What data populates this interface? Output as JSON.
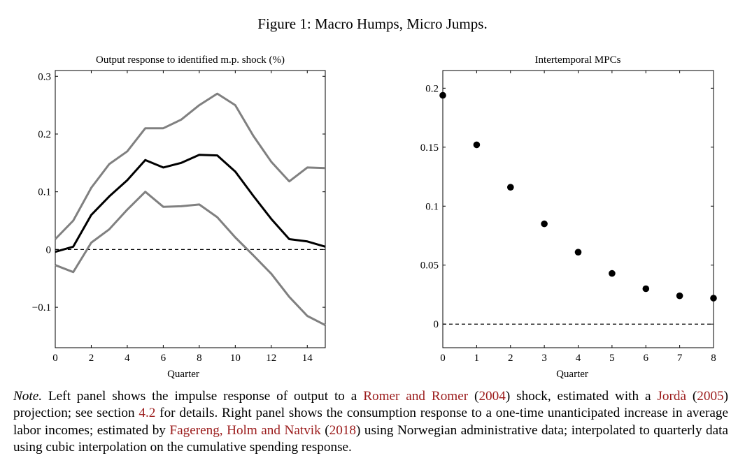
{
  "figure_title": "Figure 1: Macro Humps, Micro Jumps.",
  "chart_data": [
    {
      "type": "line",
      "title": "Output response to identified m.p. shock (%)",
      "xlabel": "Quarter",
      "ylabel": "",
      "xlim": [
        0,
        15
      ],
      "ylim": [
        -0.17,
        0.31
      ],
      "xticks": [
        0,
        2,
        4,
        6,
        8,
        10,
        12,
        14
      ],
      "yticks": [
        {
          "value": -0.1,
          "label": "−0.1"
        },
        {
          "value": 0,
          "label": "0"
        },
        {
          "value": 0.1,
          "label": "0.1"
        },
        {
          "value": 0.2,
          "label": "0.2"
        },
        {
          "value": 0.3,
          "label": "0.3"
        }
      ],
      "reference_line": {
        "y": 0,
        "style": "dashed"
      },
      "x": [
        0,
        1,
        2,
        3,
        4,
        5,
        6,
        7,
        8,
        9,
        10,
        11,
        12,
        13,
        14,
        15
      ],
      "series": [
        {
          "role": "upper-band",
          "color": "#808080",
          "values": [
            0.018,
            0.05,
            0.107,
            0.148,
            0.17,
            0.21,
            0.21,
            0.225,
            0.25,
            0.27,
            0.25,
            0.197,
            0.152,
            0.118,
            0.142,
            0.141
          ]
        },
        {
          "role": "point-estimate",
          "color": "#000000",
          "values": [
            -0.004,
            0.005,
            0.06,
            0.092,
            0.12,
            0.155,
            0.142,
            0.15,
            0.164,
            0.163,
            0.135,
            0.093,
            0.053,
            0.018,
            0.014,
            0.005
          ]
        },
        {
          "role": "lower-band",
          "color": "#808080",
          "values": [
            -0.027,
            -0.039,
            0.012,
            0.035,
            0.069,
            0.1,
            0.074,
            0.075,
            0.078,
            0.056,
            0.021,
            -0.01,
            -0.042,
            -0.082,
            -0.115,
            -0.131
          ]
        }
      ]
    },
    {
      "type": "scatter",
      "title": "Intertemporal MPCs",
      "xlabel": "Quarter",
      "ylabel": "",
      "xlim": [
        0,
        8
      ],
      "ylim": [
        -0.02,
        0.215
      ],
      "xticks": [
        0,
        1,
        2,
        3,
        4,
        5,
        6,
        7,
        8
      ],
      "yticks": [
        {
          "value": 0,
          "label": "0"
        },
        {
          "value": 0.05,
          "label": "0.05"
        },
        {
          "value": 0.1,
          "label": "0.1"
        },
        {
          "value": 0.15,
          "label": "0.15"
        },
        {
          "value": 0.2,
          "label": "0.2"
        }
      ],
      "reference_line": {
        "y": 0,
        "style": "dashed"
      },
      "x": [
        0,
        1,
        2,
        3,
        4,
        5,
        6,
        7,
        8
      ],
      "values": [
        0.194,
        0.152,
        0.116,
        0.085,
        0.061,
        0.043,
        0.03,
        0.024,
        0.022
      ]
    }
  ],
  "note": {
    "label": "Note.",
    "t1": " Left panel shows the impulse response of output to a ",
    "c1": "Romer and Romer",
    "t2": " (",
    "c2": "2004",
    "t3": ") shock, estimated with a ",
    "c3": "Jordà",
    "t4": " (",
    "c4": "2005",
    "t5": ") projection; see section ",
    "c5": "4.2",
    "t6": " for details. Right panel shows the consumption response to a one-time unanticipated increase in average labor incomes; estimated by ",
    "c6": "Fagereng, Holm and Natvik",
    "t7": " (",
    "c7": "2018",
    "t8": ") using Norwegian administrative data; interpolated to quarterly data using cubic interpolation on the cumulative spending response."
  }
}
